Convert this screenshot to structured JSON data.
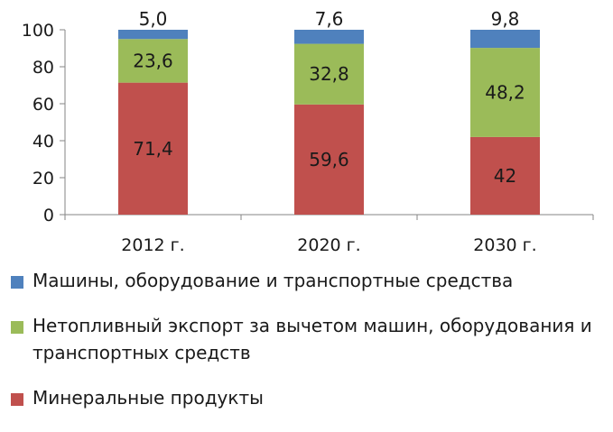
{
  "chart_data": {
    "type": "bar",
    "stacked": true,
    "categories": [
      "2012 г.",
      "2020 г.",
      "2030 г."
    ],
    "series": [
      {
        "name": "Минеральные продукты",
        "values": [
          71.4,
          59.6,
          42
        ],
        "labels": [
          "71,4",
          "59,6",
          "42"
        ],
        "color": "#c0504d"
      },
      {
        "name": "Нетопливный экспорт за вычетом машин, оборудования и транспортных средств",
        "values": [
          23.6,
          32.8,
          48.2
        ],
        "labels": [
          "23,6",
          "32,8",
          "48,2"
        ],
        "color": "#9bbb59"
      },
      {
        "name": "Машины, оборудование и транспортные средства",
        "values": [
          5.0,
          7.6,
          9.8
        ],
        "labels": [
          "5,0",
          "7,6",
          "9,8"
        ],
        "color": "#4f81bd"
      }
    ],
    "yticks": [
      "0",
      "20",
      "40",
      "60",
      "80",
      "100"
    ],
    "ylim": [
      0,
      100
    ],
    "legend_position": "bottom",
    "grid": false
  },
  "legend": {
    "items": [
      {
        "label": "Машины, оборудование и транспортные средства",
        "color": "#4f81bd"
      },
      {
        "label": "Нетопливный экспорт за вычетом машин, оборудования и транспортных средств",
        "color": "#9bbb59"
      },
      {
        "label": "Минеральные продукты",
        "color": "#c0504d"
      }
    ]
  }
}
